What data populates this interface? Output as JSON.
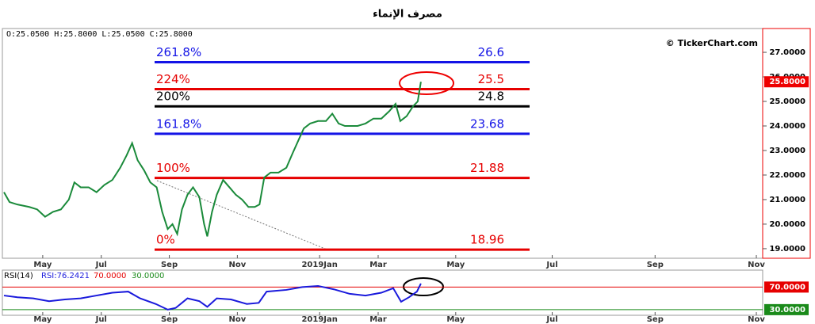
{
  "chart_data": [
    {
      "type": "line",
      "title": "مصرف الإنماء",
      "info": "O:25.0500  H:25.8000  L:25.0500  C:25.8000",
      "watermark": "© TickerChart.com",
      "color": "#1a8a3a",
      "x": [
        -24.5,
        -21,
        -16,
        -8.5,
        -3.5,
        1.5,
        6.5,
        11.5,
        16.5,
        20,
        24,
        29,
        34,
        39,
        44,
        49,
        53,
        56.5,
        60,
        64,
        68,
        72,
        75.5,
        79,
        82,
        85,
        88,
        91.5,
        95,
        99,
        102,
        104,
        107,
        110,
        114,
        118,
        122,
        126,
        130,
        134,
        137,
        140,
        144,
        149,
        154,
        158,
        161.5,
        165,
        169,
        174,
        179,
        183,
        187,
        191,
        195,
        199,
        204,
        209,
        214,
        219,
        223,
        226,
        230,
        234,
        237,
        239
      ],
      "values": [
        21.3,
        20.9,
        20.8,
        20.7,
        20.6,
        20.3,
        20.5,
        20.6,
        21.0,
        21.7,
        21.5,
        21.5,
        21.3,
        21.6,
        21.8,
        22.3,
        22.8,
        23.3,
        22.6,
        22.2,
        21.7,
        21.5,
        20.5,
        19.8,
        20.0,
        19.6,
        20.6,
        21.2,
        21.5,
        21.1,
        20.0,
        19.5,
        20.5,
        21.2,
        21.8,
        21.5,
        21.2,
        21.0,
        20.7,
        20.7,
        20.8,
        21.9,
        22.1,
        22.1,
        22.3,
        22.9,
        23.4,
        23.9,
        24.1,
        24.2,
        24.2,
        24.5,
        24.1,
        24.0,
        24.0,
        24.0,
        24.1,
        24.3,
        24.3,
        24.6,
        24.9,
        24.2,
        24.4,
        24.8,
        25.0,
        25.8
      ],
      "xlim": [
        -25.5,
        455
      ],
      "xticks": [
        {
          "value": 0,
          "label": "May"
        },
        {
          "value": 37,
          "label": "Jul"
        },
        {
          "value": 80,
          "label": "Sep"
        },
        {
          "value": 123,
          "label": "Nov"
        },
        {
          "value": 175,
          "label": "2019Jan"
        },
        {
          "value": 212,
          "label": "Mar"
        },
        {
          "value": 261,
          "label": "May"
        },
        {
          "value": 322,
          "label": "Jul"
        },
        {
          "value": 387,
          "label": "Sep"
        },
        {
          "value": 451,
          "label": "Nov"
        }
      ],
      "ylim": [
        18.61,
        27.97
      ],
      "yticks": [
        {
          "value": 19,
          "label": "19.0000"
        },
        {
          "value": 20,
          "label": "20.0000"
        },
        {
          "value": 21,
          "label": "21.0000"
        },
        {
          "value": 22,
          "label": "22.0000"
        },
        {
          "value": 23,
          "label": "23.0000"
        },
        {
          "value": 24,
          "label": "24.0000"
        },
        {
          "value": 25,
          "label": "25.0000"
        },
        {
          "value": 26,
          "label": "26.0000"
        },
        {
          "value": 27,
          "label": "27.0000"
        }
      ],
      "last_price": {
        "value": 25.8,
        "label": "25.8000"
      },
      "fib_levels": [
        {
          "label": "261.8%",
          "value": 26.6,
          "color": "#1414e6"
        },
        {
          "label": "224%",
          "value": 25.5,
          "color": "#e60000"
        },
        {
          "label": "200%",
          "value": 24.8,
          "color": "#000000"
        },
        {
          "label": "161.8%",
          "value": 23.68,
          "color": "#1414e6"
        },
        {
          "label": "100%",
          "value": 21.88,
          "color": "#e60000"
        },
        {
          "label": "0%",
          "value": 18.96,
          "color": "#e60000"
        }
      ]
    },
    {
      "type": "line",
      "name": "RSI(14)",
      "reading": "RSI:76.2421",
      "color": "#1a1adc",
      "x": [
        -24.5,
        -16,
        -6,
        4,
        14,
        24,
        34,
        44,
        54,
        61.5,
        71.5,
        79,
        84,
        91.5,
        99,
        104,
        110,
        119,
        129,
        136.5,
        141.5,
        154,
        164,
        174,
        184,
        194,
        204,
        214,
        221.5,
        226.5,
        231.5,
        236.5,
        239
      ],
      "values": [
        55,
        52,
        50,
        45,
        48,
        50,
        55,
        60,
        62,
        50,
        40,
        30,
        33,
        50,
        45,
        35,
        50,
        48,
        40,
        42,
        62,
        65,
        70,
        72,
        66,
        58,
        55,
        60,
        68,
        44,
        52,
        62,
        76.2421
      ],
      "xlim": [
        -25.5,
        455
      ],
      "ylim": [
        20,
        100
      ],
      "levels": [
        {
          "value": 70,
          "label": "70.0000",
          "color": "#e60000"
        },
        {
          "value": 30,
          "label": "30.0000",
          "color": "#1a8a1a"
        }
      ]
    }
  ]
}
